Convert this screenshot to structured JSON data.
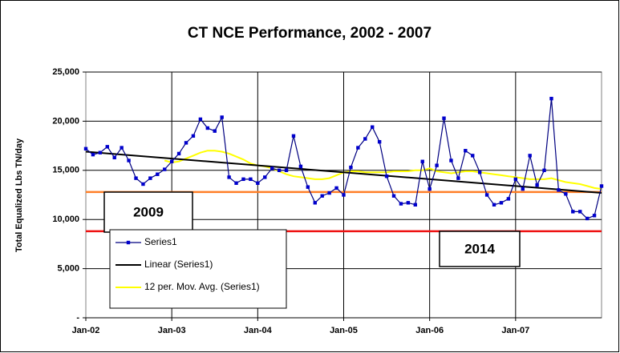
{
  "chart_data": {
    "type": "line",
    "title": "CT NCE Performance, 2002 - 2007",
    "y_label": "Total Equalized Lbs TN/day",
    "categories": [
      "Jan-02",
      null,
      null,
      null,
      null,
      null,
      null,
      null,
      null,
      null,
      null,
      null,
      "Jan-03",
      null,
      null,
      null,
      null,
      null,
      null,
      null,
      null,
      null,
      null,
      null,
      "Jan-04",
      null,
      null,
      null,
      null,
      null,
      null,
      null,
      null,
      null,
      null,
      null,
      "Jan-05",
      null,
      null,
      null,
      null,
      null,
      null,
      null,
      null,
      null,
      null,
      null,
      "Jan-06",
      null,
      null,
      null,
      null,
      null,
      null,
      null,
      null,
      null,
      null,
      null,
      "Jan-07",
      null,
      null,
      null,
      null,
      null,
      null,
      null,
      null,
      null,
      null,
      null,
      null
    ],
    "ylim": [
      0,
      25000
    ],
    "yticks": [
      {
        "value": 0,
        "label": "-"
      },
      {
        "value": 5000,
        "label": "5,000"
      },
      {
        "value": 10000,
        "label": "10,000"
      },
      {
        "value": 15000,
        "label": "15,000"
      },
      {
        "value": 20000,
        "label": "20,000"
      },
      {
        "value": 25000,
        "label": "25,000"
      }
    ],
    "grid": true,
    "series": [
      {
        "name": "Series1",
        "color": "#0000cc",
        "line_color": "#000080",
        "marker": "square",
        "values": [
          17200,
          16600,
          16800,
          17400,
          16300,
          17300,
          16000,
          14200,
          13600,
          14200,
          14600,
          15100,
          15900,
          16700,
          17800,
          18500,
          20200,
          19300,
          19000,
          20400,
          14300,
          13700,
          14100,
          14100,
          13700,
          14300,
          15200,
          15000,
          15000,
          18500,
          15400,
          13300,
          11700,
          12400,
          12700,
          13200,
          12500,
          15300,
          17300,
          18200,
          19400,
          17900,
          14400,
          12400,
          11600,
          11700,
          11500,
          15900,
          13100,
          15500,
          20300,
          16000,
          14200,
          17000,
          16500,
          14800,
          12500,
          11500,
          11700,
          12100,
          14100,
          13100,
          16500,
          13500,
          15000,
          22300,
          13000,
          12600,
          10800,
          10800,
          10100,
          10400,
          13400
        ]
      },
      {
        "name": "Linear (Series1)",
        "color": "#000000",
        "x": [
          0,
          72
        ],
        "values": [
          16900,
          12700
        ]
      },
      {
        "name": "12 per. Mov. Avg. (Series1)",
        "color": "#ffff00",
        "values": [
          null,
          null,
          null,
          null,
          null,
          null,
          null,
          null,
          null,
          null,
          null,
          16000,
          15800,
          15900,
          16200,
          16500,
          16800,
          17000,
          17000,
          16900,
          16700,
          16400,
          16100,
          15700,
          15500,
          15400,
          15200,
          14900,
          14600,
          14400,
          14300,
          14200,
          14100,
          14100,
          14200,
          14500,
          14800,
          14900,
          14900,
          14800,
          14800,
          14800,
          14800,
          14900,
          14900,
          14900,
          15000,
          15000,
          15200,
          14900,
          14800,
          14700,
          14800,
          14900,
          14900,
          14800,
          14700,
          14600,
          14500,
          14400,
          14300,
          14200,
          14100,
          14100,
          14100,
          14200,
          14000,
          13800,
          13700,
          13600,
          13400,
          13200,
          13100
        ]
      }
    ],
    "reference_lines": [
      {
        "value": 12800,
        "color": "#ff7f27",
        "label": "2009"
      },
      {
        "value": 8800,
        "color": "#ee1111",
        "label": "2014"
      }
    ]
  }
}
